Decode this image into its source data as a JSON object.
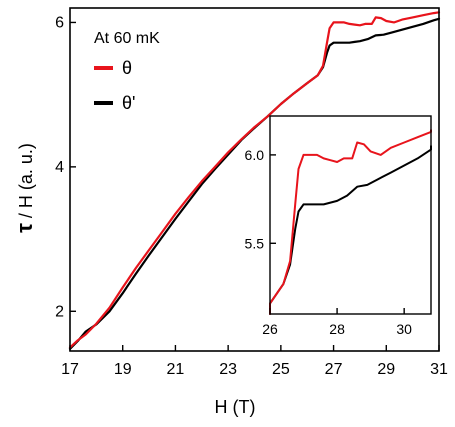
{
  "chart_data": {
    "type": "line",
    "title": "",
    "xlabel": "H (T)",
    "ylabel_symbol": "τ",
    "ylabel_rest": " / H (a. u.)",
    "xlim": [
      17,
      31
    ],
    "ylim": [
      1.45,
      6.2
    ],
    "xticks": [
      17,
      19,
      21,
      23,
      25,
      27,
      29,
      31
    ],
    "yticks": [
      2,
      4,
      6
    ],
    "legend": {
      "title": "At 60 mK",
      "placement": "top-left",
      "entries": [
        {
          "label": "θ",
          "color": "#e8141c"
        },
        {
          "label": "θ'",
          "color": "#000000"
        }
      ]
    },
    "series": [
      {
        "name": "θ",
        "color": "#e8141c",
        "x": [
          17.0,
          17.3,
          17.6,
          18.0,
          18.5,
          19.0,
          19.5,
          20.0,
          20.5,
          21.0,
          21.5,
          22.0,
          22.5,
          23.0,
          23.5,
          24.0,
          24.5,
          25.0,
          25.5,
          26.0,
          26.4,
          26.6,
          26.75,
          26.85,
          27.0,
          27.2,
          27.4,
          27.6,
          27.8,
          28.0,
          28.2,
          28.45,
          28.6,
          28.8,
          29.0,
          29.3,
          29.6,
          30.0,
          30.4,
          30.8,
          31.0
        ],
        "y": [
          1.5,
          1.6,
          1.68,
          1.83,
          2.05,
          2.33,
          2.6,
          2.85,
          3.1,
          3.35,
          3.58,
          3.8,
          4.0,
          4.2,
          4.38,
          4.55,
          4.7,
          4.87,
          5.02,
          5.16,
          5.27,
          5.4,
          5.72,
          5.92,
          6.0,
          6.0,
          6.0,
          5.98,
          5.97,
          5.96,
          5.98,
          5.98,
          6.07,
          6.06,
          6.02,
          6.0,
          6.04,
          6.07,
          6.1,
          6.13,
          6.14
        ]
      },
      {
        "name": "θ'",
        "color": "#000000",
        "x": [
          17.0,
          17.3,
          17.6,
          18.0,
          18.5,
          19.0,
          19.5,
          20.0,
          20.5,
          21.0,
          21.5,
          22.0,
          22.5,
          23.0,
          23.5,
          24.0,
          24.5,
          25.0,
          25.5,
          26.0,
          26.4,
          26.6,
          26.75,
          26.85,
          27.0,
          27.3,
          27.6,
          27.8,
          28.0,
          28.3,
          28.6,
          28.9,
          29.2,
          29.6,
          30.0,
          30.4,
          30.8,
          31.0
        ],
        "y": [
          1.48,
          1.59,
          1.72,
          1.82,
          2.0,
          2.25,
          2.52,
          2.78,
          3.03,
          3.28,
          3.52,
          3.76,
          3.97,
          4.17,
          4.37,
          4.54,
          4.7,
          4.87,
          5.02,
          5.16,
          5.27,
          5.38,
          5.58,
          5.68,
          5.72,
          5.72,
          5.72,
          5.73,
          5.74,
          5.77,
          5.82,
          5.83,
          5.86,
          5.9,
          5.94,
          5.98,
          6.03,
          6.05
        ]
      }
    ],
    "inset": {
      "placement": "bottom-right",
      "xlim": [
        26,
        30.8
      ],
      "ylim": [
        5.1,
        6.22
      ],
      "xticks": [
        26,
        28,
        30
      ],
      "yticks": [
        5.5,
        6.0
      ],
      "ytick_labels": [
        "5.5",
        "6.0"
      ]
    }
  }
}
